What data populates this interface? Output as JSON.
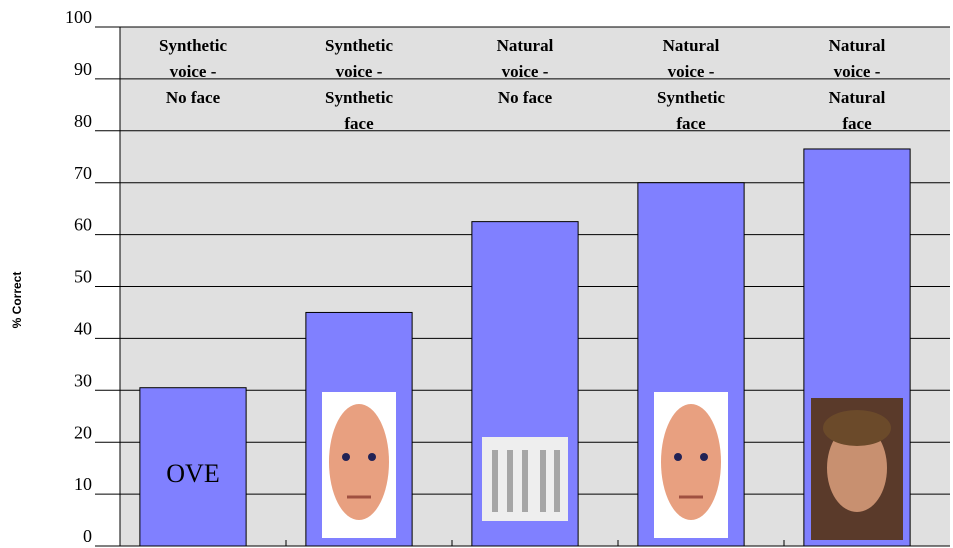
{
  "chart_data": {
    "type": "bar",
    "y_label": "% Correct",
    "categories": [
      "Synthetic\nvoice -\nNo face",
      "Synthetic\nvoice -\nSynthetic\nface",
      "Natural\nvoice -\nNo face",
      "Natural\nvoice -\nSynthetic\nface",
      "Natural\nvoice -\nNatural\nface"
    ],
    "values": [
      30.5,
      45,
      62.5,
      70,
      76.5
    ],
    "color": "#8080ff",
    "ylim": [
      0,
      100
    ],
    "yticks": [
      0,
      10,
      20,
      30,
      40,
      50,
      60,
      70,
      80,
      90,
      100
    ],
    "grid": true,
    "annotations": [
      "OVE"
    ]
  }
}
